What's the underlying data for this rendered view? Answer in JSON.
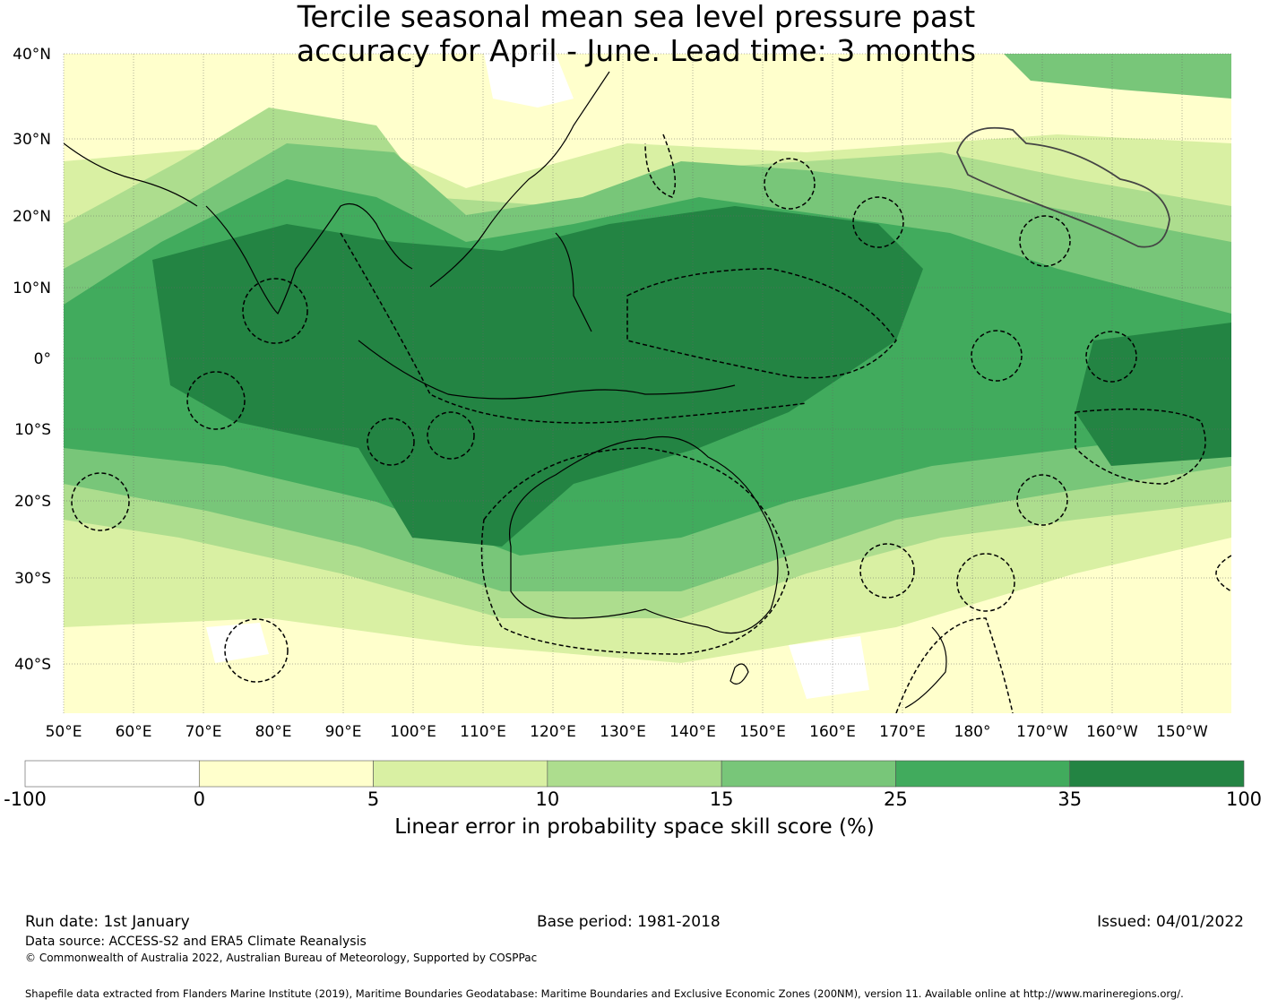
{
  "title_line1": "Tercile seasonal mean sea level pressure past",
  "title_line2": "accuracy for April - June. Lead time: 3 months",
  "lat_labels": [
    "40°N",
    "30°N",
    "20°N",
    "10°N",
    "0°",
    "10°S",
    "20°S",
    "30°S",
    "40°S"
  ],
  "lon_labels": [
    "50°E",
    "60°E",
    "70°E",
    "80°E",
    "90°E",
    "100°E",
    "110°E",
    "120°E",
    "130°E",
    "140°E",
    "150°E",
    "160°E",
    "170°E",
    "180°",
    "170°W",
    "160°W",
    "150°W"
  ],
  "colorbar": {
    "label": "Linear error in probability space skill score (%)",
    "ticks": [
      "-100",
      "0",
      "5",
      "10",
      "15",
      "25",
      "35",
      "100"
    ],
    "colors": [
      "#ffffff",
      "#ffffcc",
      "#d9f0a3",
      "#addd8e",
      "#78c679",
      "#41ab5d",
      "#238443"
    ]
  },
  "footer": {
    "run_date": "Run date: 1st January",
    "base_period": "Base period: 1981-2018",
    "issued": "Issued: 04/01/2022",
    "data_source": "Data source: ACCESS-S2 and ERA5 Climate Reanalysis",
    "copyright": "© Commonwealth of Australia 2022, Australian Bureau of Meteorology, Supported by COSPPac",
    "shapefile": "Shapefile data extracted from Flanders Marine Institute (2019), Maritime Boundaries Geodatabase: Maritime Boundaries and Exclusive Economic Zones (200NM), version 11. Available online at http://www.marineregions.org/."
  }
}
